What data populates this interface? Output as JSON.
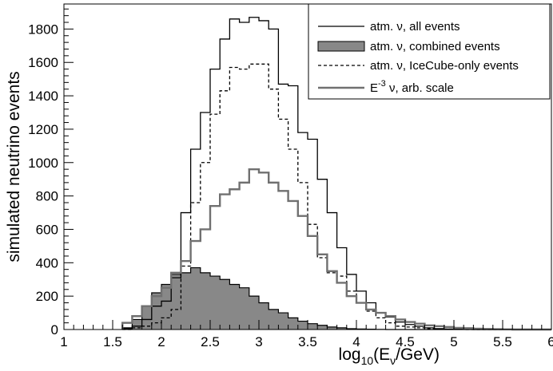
{
  "chart_data": {
    "type": "histogram",
    "xlabel": "log10(Eν/GeV)",
    "ylabel": "simulated neutrino events",
    "xlim": [
      1,
      6
    ],
    "ylim": [
      0,
      1950
    ],
    "xticks": [
      "1",
      "1.5",
      "2",
      "2.5",
      "3",
      "3.5",
      "4",
      "4.5",
      "5",
      "5.5",
      "6"
    ],
    "yticks": [
      "0",
      "200",
      "400",
      "600",
      "800",
      "1000",
      "1200",
      "1400",
      "1600",
      "1800"
    ],
    "legend_position": "top-right",
    "bin_edges": [
      1.6,
      1.7,
      1.8,
      1.9,
      2.0,
      2.1,
      2.2,
      2.3,
      2.4,
      2.5,
      2.6,
      2.7,
      2.8,
      2.9,
      3.0,
      3.1,
      3.2,
      3.3,
      3.4,
      3.5,
      3.6,
      3.7,
      3.8,
      3.9,
      4.0,
      4.1,
      4.2,
      4.3,
      4.4,
      4.5,
      4.6,
      4.7,
      4.8,
      4.9,
      5.0,
      5.1,
      5.2,
      5.3,
      5.4,
      5.5,
      5.6,
      5.7,
      5.8,
      5.9,
      6.0
    ],
    "series": [
      {
        "name": "atm. ν, all events",
        "style": "solid",
        "color": "#000000",
        "values": [
          5,
          20,
          60,
          140,
          170,
          310,
          700,
          1080,
          1300,
          1560,
          1740,
          1860,
          1840,
          1870,
          1850,
          1800,
          1470,
          1460,
          1180,
          1140,
          900,
          700,
          490,
          330,
          230,
          160,
          100,
          75,
          45,
          30,
          20,
          10,
          5,
          3,
          2,
          1,
          0,
          0,
          0,
          0,
          0,
          0,
          0,
          0
        ]
      },
      {
        "name": "atm. ν, combined events",
        "style": "filled",
        "color": "#888888",
        "values": [
          10,
          60,
          140,
          220,
          270,
          330,
          340,
          370,
          340,
          320,
          300,
          270,
          250,
          200,
          160,
          120,
          100,
          70,
          50,
          35,
          25,
          15,
          10,
          5,
          3,
          2,
          1,
          0,
          0,
          0,
          0,
          0,
          0,
          0,
          0,
          0,
          0,
          0,
          0,
          0,
          0,
          0,
          0,
          0
        ]
      },
      {
        "name": "atm. ν, IceCube-only events",
        "style": "dashed",
        "color": "#000000",
        "values": [
          0,
          10,
          20,
          40,
          70,
          120,
          380,
          760,
          1000,
          1290,
          1430,
          1570,
          1560,
          1590,
          1590,
          1440,
          1260,
          1080,
          880,
          630,
          430,
          340,
          320,
          230,
          160,
          110,
          70,
          40,
          20,
          15,
          10,
          5,
          3,
          2,
          1,
          0,
          0,
          0,
          0,
          0,
          0,
          0,
          0,
          0
        ]
      },
      {
        "name": "E⁻³ ν, arb. scale",
        "legend_base": "E",
        "legend_exp": "-3",
        "legend_tail": " ν, arb. scale",
        "style": "solid",
        "color": "#707070",
        "values": [
          40,
          80,
          140,
          200,
          250,
          340,
          410,
          530,
          600,
          740,
          810,
          840,
          880,
          960,
          940,
          880,
          830,
          770,
          680,
          560,
          450,
          350,
          280,
          200,
          160,
          120,
          100,
          80,
          60,
          45,
          35,
          25,
          20,
          15,
          10,
          8,
          5,
          3,
          2,
          1,
          0,
          0,
          0,
          0
        ]
      }
    ]
  }
}
